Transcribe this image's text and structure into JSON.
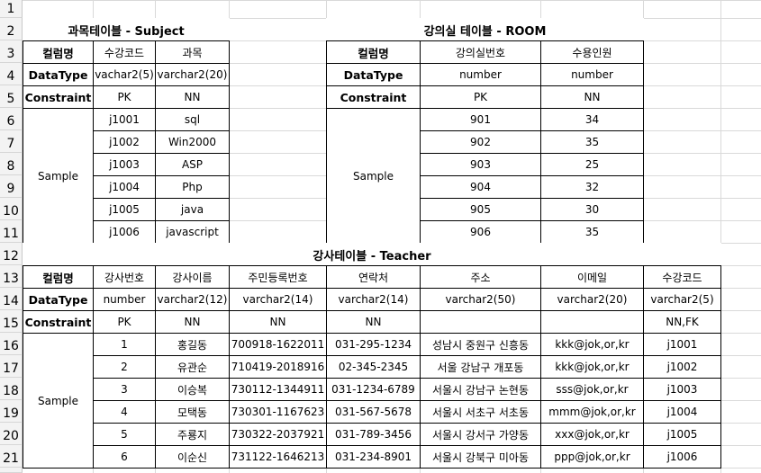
{
  "row_numbers": [
    "1",
    "2",
    "3",
    "4",
    "5",
    "6",
    "7",
    "8",
    "9",
    "10",
    "11",
    "12",
    "13",
    "14",
    "15",
    "16",
    "17",
    "18",
    "19",
    "20",
    "21"
  ],
  "subject": {
    "title": "과목테이블 - Subject",
    "header": [
      "컬럼명",
      "수강코드",
      "과목"
    ],
    "datatype": [
      "DataType",
      "vachar2(5)",
      "varchar2(20)"
    ],
    "constraint": [
      "Constraint",
      "PK",
      "NN"
    ],
    "sample_label": "Sample",
    "rows": [
      [
        "j1001",
        "sql"
      ],
      [
        "j1002",
        "Win2000"
      ],
      [
        "j1003",
        "ASP"
      ],
      [
        "j1004",
        "Php"
      ],
      [
        "j1005",
        "java"
      ],
      [
        "j1006",
        "javascript"
      ]
    ]
  },
  "room": {
    "title": "강의실 테이블 - ROOM",
    "header": [
      "컬럼명",
      "강의실번호",
      "수용인원"
    ],
    "datatype": [
      "DataType",
      "number",
      "number"
    ],
    "constraint": [
      "Constraint",
      "PK",
      "NN"
    ],
    "sample_label": "Sample",
    "rows": [
      [
        "901",
        "34"
      ],
      [
        "902",
        "35"
      ],
      [
        "903",
        "25"
      ],
      [
        "904",
        "32"
      ],
      [
        "905",
        "30"
      ],
      [
        "906",
        "35"
      ]
    ]
  },
  "teacher": {
    "title": "강사테이블 - Teacher",
    "header": [
      "컬럼명",
      "강사번호",
      "강사이름",
      "주민등록번호",
      "연락처",
      "주소",
      "이메일",
      "수강코드"
    ],
    "datatype": [
      "DataType",
      "number",
      "varchar2(12)",
      "varchar2(14)",
      "varchar2(14)",
      "varchar2(50)",
      "varchar2(20)",
      "varchar2(5)"
    ],
    "constraint": [
      "Constraint",
      "PK",
      "NN",
      "NN",
      "NN",
      "",
      "",
      "NN,FK"
    ],
    "sample_label": "Sample",
    "rows": [
      [
        "1",
        "홍길동",
        "700918-1622011",
        "031-295-1234",
        "성남시 중원구 신흥동",
        "kkk@jok,or,kr",
        "j1001"
      ],
      [
        "2",
        "유관순",
        "710419-2018916",
        "02-345-2345",
        "서울 강남구 개포동",
        "kkk@jok,or,kr",
        "j1002"
      ],
      [
        "3",
        "이승복",
        "730112-1344911",
        "031-1234-6789",
        "서울시 강남구 논현동",
        "sss@jok,or,kr",
        "j1003"
      ],
      [
        "4",
        "모택동",
        "730301-1167623",
        "031-567-5678",
        "서울시 서초구 서초동",
        "mmm@jok,or,kr",
        "j1004"
      ],
      [
        "5",
        "주룡지",
        "730322-2037921",
        "031-789-3456",
        "서울시 강서구 가양동",
        "xxx@jok,or,kr",
        "j1005"
      ],
      [
        "6",
        "이순신",
        "731122-1646213",
        "031-234-8901",
        "서울시 강북구 미아동",
        "ppp@jok,or,kr",
        "j1006"
      ]
    ]
  }
}
